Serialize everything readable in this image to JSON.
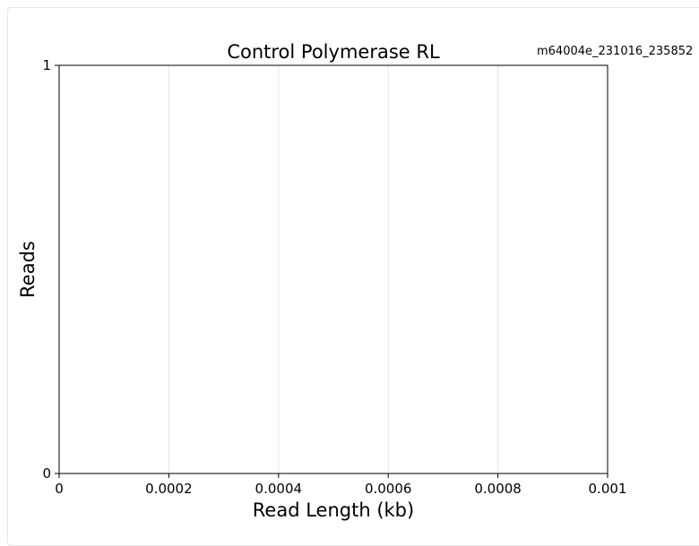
{
  "chart_data": {
    "type": "line",
    "title": "Control Polymerase RL",
    "subtitle": "m64004e_231016_235852",
    "xlabel": "Read Length (kb)",
    "ylabel": "Reads",
    "xlim": [
      0,
      0.001
    ],
    "ylim": [
      0,
      1
    ],
    "x_ticks": [
      "0",
      "0.0002",
      "0.0004",
      "0.0006",
      "0.0008",
      "0.001"
    ],
    "y_ticks": [
      "0",
      "1"
    ],
    "grid": "vertical",
    "series": []
  }
}
